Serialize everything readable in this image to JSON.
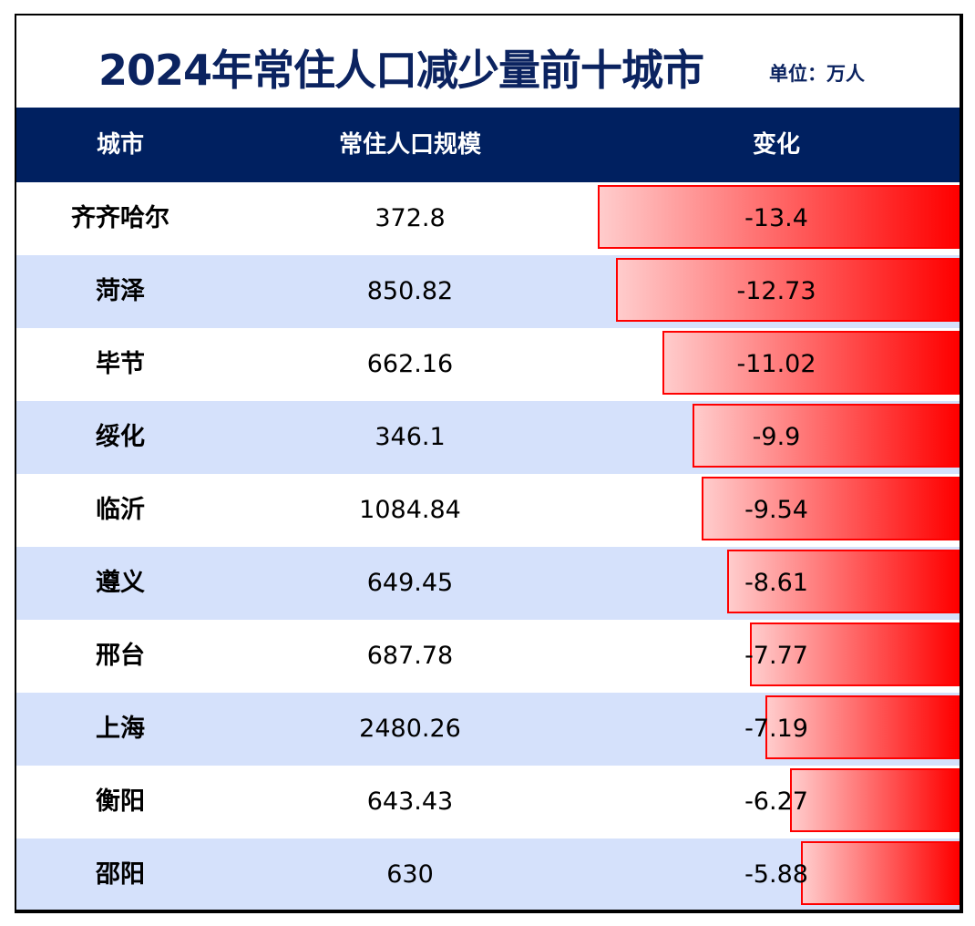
{
  "chart_data": {
    "type": "table",
    "title": "2024年常住人口减少量前十城市",
    "unit": "单位：万人",
    "columns": [
      "城市",
      "常住人口规模",
      "变化"
    ],
    "rows": [
      {
        "city": "齐齐哈尔",
        "population": "372.8",
        "change": "-13.4"
      },
      {
        "city": "菏泽",
        "population": "850.82",
        "change": "-12.73"
      },
      {
        "city": "毕节",
        "population": "662.16",
        "change": "-11.02"
      },
      {
        "city": "绥化",
        "population": "346.1",
        "change": "-9.9"
      },
      {
        "city": "临沂",
        "population": "1084.84",
        "change": "-9.54"
      },
      {
        "city": "遵义",
        "population": "649.45",
        "change": "-8.61"
      },
      {
        "city": "邢台",
        "population": "687.78",
        "change": "-7.77"
      },
      {
        "city": "上海",
        "population": "2480.26",
        "change": "-7.19"
      },
      {
        "city": "衡阳",
        "population": "643.43",
        "change": "-6.27"
      },
      {
        "city": "邵阳",
        "population": "630",
        "change": "-5.88"
      }
    ],
    "bar_color": "#ff0000",
    "header_color": "#002060",
    "alt_row_color": "#d5e1fb"
  }
}
